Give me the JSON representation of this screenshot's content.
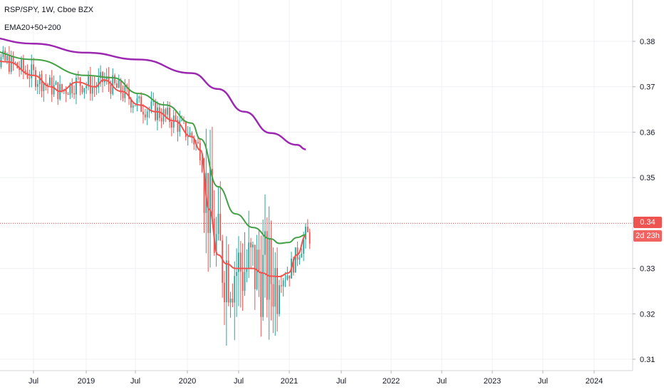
{
  "header": {
    "title": "RSP/SPY, 1W, Cboe BZX",
    "indicator": "EMA20+50+200"
  },
  "price_tag": {
    "value": "0.34",
    "countdown": "2d 23h"
  },
  "colors": {
    "up": "#26a69a",
    "down": "#ef5350",
    "ema20": "#ef5350",
    "ema50": "#43a047",
    "ema200": "#9c27b0",
    "grid": "#eef0f3",
    "price_line": "#ef5350"
  },
  "chart_data": {
    "type": "line",
    "title": "RSP/SPY, 1W, Cboe BZX",
    "y_ticks": [
      "0.38",
      "0.37",
      "0.36",
      "0.35",
      "0.34",
      "0.33",
      "0.32",
      "0.31"
    ],
    "ylim": [
      0.31,
      0.38
    ],
    "x_ticks": [
      "Jul",
      "2019",
      "Jul",
      "2020",
      "Jul",
      "2021",
      "Jul",
      "2022",
      "Jul",
      "2023",
      "Jul",
      "2024"
    ],
    "last_price": 0.34,
    "series": [
      {
        "name": "EMA20",
        "x": [
          "2018-01",
          "2018-04",
          "2018-07",
          "2018-09",
          "2018-10",
          "2018-12",
          "2019-02",
          "2019-03",
          "2019-05",
          "2019-07",
          "2019-09",
          "2019-11",
          "2020-01",
          "2020-02",
          "2020-03",
          "2020-04",
          "2020-05",
          "2020-06",
          "2020-07",
          "2020-08",
          "2020-09",
          "2020-10",
          "2020-11",
          "2020-12",
          "2021-01",
          "2021-02"
        ],
        "values": [
          0.3765,
          0.3755,
          0.3725,
          0.37,
          0.369,
          0.371,
          0.37,
          0.3715,
          0.369,
          0.366,
          0.3645,
          0.3625,
          0.359,
          0.356,
          0.343,
          0.333,
          0.331,
          0.33,
          0.33,
          0.33,
          0.329,
          0.3283,
          0.3282,
          0.329,
          0.333,
          0.3372
        ]
      },
      {
        "name": "EMA50",
        "x": [
          "2018-01",
          "2018-07",
          "2019-01",
          "2019-04",
          "2019-07",
          "2019-10",
          "2020-01",
          "2020-02",
          "2020-04",
          "2020-06",
          "2020-08",
          "2020-10",
          "2020-11",
          "2020-12",
          "2021-01",
          "2021-02"
        ],
        "values": [
          0.3782,
          0.376,
          0.3725,
          0.372,
          0.3685,
          0.366,
          0.362,
          0.3585,
          0.348,
          0.342,
          0.339,
          0.3365,
          0.3355,
          0.3357,
          0.3368,
          0.3374
        ]
      },
      {
        "name": "EMA200",
        "x": [
          "2018-01",
          "2018-07",
          "2019-01",
          "2019-07",
          "2020-01",
          "2020-04",
          "2020-07",
          "2020-10",
          "2021-01",
          "2021-02"
        ],
        "values": [
          0.381,
          0.3795,
          0.3775,
          0.376,
          0.373,
          0.3695,
          0.3645,
          0.3598,
          0.3572,
          0.3562
        ]
      }
    ]
  }
}
